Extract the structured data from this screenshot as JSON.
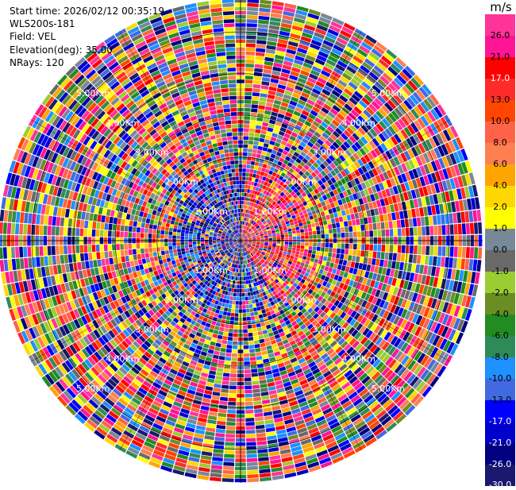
{
  "info": {
    "start_time": "Start time: 2026/02/12 00:35:19",
    "instrument": "WLS200s-181",
    "field": "Field: VEL",
    "elevation": "Elevation(deg): 35.00",
    "nrays": "NRays: 120"
  },
  "colorbar": {
    "unit": "m/s",
    "ticks": [
      "26.0",
      "21.0",
      "17.0",
      "13.0",
      "10.0",
      "8.0",
      "6.0",
      "4.0",
      "2.0",
      "1.0",
      "0.0",
      "-1.0",
      "-2.0",
      "-4.0",
      "-6.0",
      "-8.0",
      "-10.0",
      "-13.0",
      "-17.0",
      "-21.0",
      "-26.0",
      "-30.0"
    ],
    "colors": [
      "#ff3399",
      "#ff1493",
      "#ff0000",
      "#ff2a2a",
      "#ff4500",
      "#ff6347",
      "#ff7f50",
      "#ffa500",
      "#ffd700",
      "#ffff00",
      "#778899",
      "#696969",
      "#9acd32",
      "#6b8e23",
      "#228b22",
      "#2e8b57",
      "#1e90ff",
      "#4169e1",
      "#0000ff",
      "#0000cd",
      "#000080",
      "#191970"
    ]
  },
  "chart_data": {
    "type": "heatmap",
    "subtype": "polar PPI scan",
    "field": "VEL",
    "units": "m/s",
    "elevation_deg": 35.0,
    "n_rays": 120,
    "range_rings_km": [
      1.0,
      2.0,
      3.0,
      4.0,
      5.0
    ],
    "range_labels": [
      "1.00Km",
      "2.00Km",
      "3.00Km",
      "4.00Km",
      "5.00Km"
    ],
    "max_range_km": 5.8,
    "color_scale": [
      -30,
      -26,
      -21,
      -17,
      -13,
      -10,
      -8,
      -6,
      -4,
      -2,
      -1,
      0,
      1,
      2,
      4,
      6,
      8,
      10,
      13,
      17,
      21,
      26
    ],
    "colorbar_position": "right"
  }
}
